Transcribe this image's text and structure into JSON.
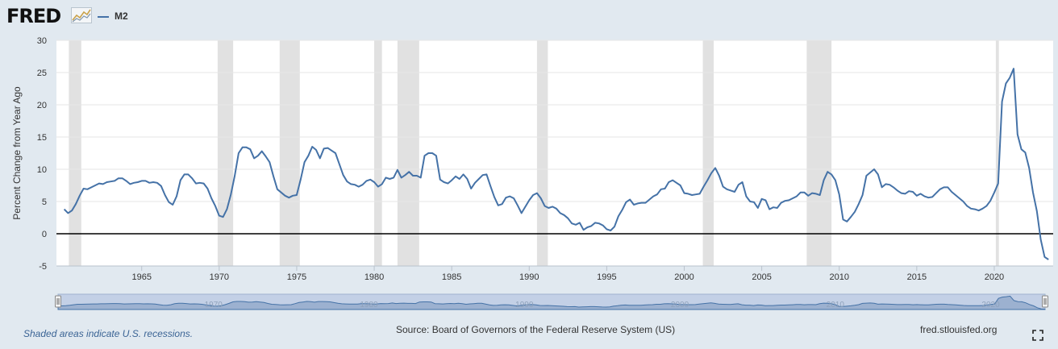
{
  "header": {
    "logo_text": "FRED",
    "logo_icon": "fred-line-graph-icon",
    "legend": [
      {
        "label": "M2",
        "color": "#4572a7"
      }
    ]
  },
  "footer": {
    "recession_note": "Shaded areas indicate U.S. recessions.",
    "source": "Source: Board of Governors of the Federal Reserve System (US)",
    "site": "fred.stlouisfed.org",
    "expand_icon": "fullscreen-expand-icon"
  },
  "navigator": {
    "tick_labels": [
      "1970",
      "1980",
      "1990",
      "2000",
      "2010",
      "2020"
    ],
    "range_start": 1960,
    "range_end": 2023.5
  },
  "chart_data": {
    "type": "line",
    "title": "",
    "ylabel": "Percent Change from Year Ago",
    "xlabel": "",
    "xlim": [
      1959.5,
      2023.8
    ],
    "ylim": [
      -5,
      30
    ],
    "yticks": [
      -5,
      0,
      5,
      10,
      15,
      20,
      25,
      30
    ],
    "xticks": [
      1965,
      1970,
      1975,
      1980,
      1985,
      1990,
      1995,
      2000,
      2005,
      2010,
      2015,
      2020
    ],
    "grid": true,
    "legend_position": "top-left",
    "series_color": "#4572a7",
    "recessions": [
      [
        1960.3,
        1961.1
      ],
      [
        1969.9,
        1970.9
      ],
      [
        1973.9,
        1975.2
      ],
      [
        1980.0,
        1980.5
      ],
      [
        1981.5,
        1982.9
      ],
      [
        1990.5,
        1991.2
      ],
      [
        2001.2,
        2001.9
      ],
      [
        2007.9,
        2009.5
      ],
      [
        2020.1,
        2020.3
      ]
    ],
    "series": [
      {
        "name": "M2",
        "x": [
          1960.0,
          1960.25,
          1960.5,
          1960.75,
          1961.0,
          1961.25,
          1961.5,
          1961.75,
          1962.0,
          1962.25,
          1962.5,
          1962.75,
          1963.0,
          1963.25,
          1963.5,
          1963.75,
          1964.0,
          1964.25,
          1964.5,
          1964.75,
          1965.0,
          1965.25,
          1965.5,
          1965.75,
          1966.0,
          1966.25,
          1966.5,
          1966.75,
          1967.0,
          1967.25,
          1967.5,
          1967.75,
          1968.0,
          1968.25,
          1968.5,
          1968.75,
          1969.0,
          1969.25,
          1969.5,
          1969.75,
          1970.0,
          1970.25,
          1970.5,
          1970.75,
          1971.0,
          1971.25,
          1971.5,
          1971.75,
          1972.0,
          1972.25,
          1972.5,
          1972.75,
          1973.0,
          1973.25,
          1973.5,
          1973.75,
          1974.0,
          1974.25,
          1974.5,
          1974.75,
          1975.0,
          1975.25,
          1975.5,
          1975.75,
          1976.0,
          1976.25,
          1976.5,
          1976.75,
          1977.0,
          1977.25,
          1977.5,
          1977.75,
          1978.0,
          1978.25,
          1978.5,
          1978.75,
          1979.0,
          1979.25,
          1979.5,
          1979.75,
          1980.0,
          1980.25,
          1980.5,
          1980.75,
          1981.0,
          1981.25,
          1981.5,
          1981.75,
          1982.0,
          1982.25,
          1982.5,
          1982.75,
          1983.0,
          1983.25,
          1983.5,
          1983.75,
          1984.0,
          1984.25,
          1984.5,
          1984.75,
          1985.0,
          1985.25,
          1985.5,
          1985.75,
          1986.0,
          1986.25,
          1986.5,
          1986.75,
          1987.0,
          1987.25,
          1987.5,
          1987.75,
          1988.0,
          1988.25,
          1988.5,
          1988.75,
          1989.0,
          1989.25,
          1989.5,
          1989.75,
          1990.0,
          1990.25,
          1990.5,
          1990.75,
          1991.0,
          1991.25,
          1991.5,
          1991.75,
          1992.0,
          1992.25,
          1992.5,
          1992.75,
          1993.0,
          1993.25,
          1993.5,
          1993.75,
          1994.0,
          1994.25,
          1994.5,
          1994.75,
          1995.0,
          1995.25,
          1995.5,
          1995.75,
          1996.0,
          1996.25,
          1996.5,
          1996.75,
          1997.0,
          1997.25,
          1997.5,
          1997.75,
          1998.0,
          1998.25,
          1998.5,
          1998.75,
          1999.0,
          1999.25,
          1999.5,
          1999.75,
          2000.0,
          2000.25,
          2000.5,
          2000.75,
          2001.0,
          2001.25,
          2001.5,
          2001.75,
          2002.0,
          2002.25,
          2002.5,
          2002.75,
          2003.0,
          2003.25,
          2003.5,
          2003.75,
          2004.0,
          2004.25,
          2004.5,
          2004.75,
          2005.0,
          2005.25,
          2005.5,
          2005.75,
          2006.0,
          2006.25,
          2006.5,
          2006.75,
          2007.0,
          2007.25,
          2007.5,
          2007.75,
          2008.0,
          2008.25,
          2008.5,
          2008.75,
          2009.0,
          2009.25,
          2009.5,
          2009.75,
          2010.0,
          2010.25,
          2010.5,
          2010.75,
          2011.0,
          2011.25,
          2011.5,
          2011.75,
          2012.0,
          2012.25,
          2012.5,
          2012.75,
          2013.0,
          2013.25,
          2013.5,
          2013.75,
          2014.0,
          2014.25,
          2014.5,
          2014.75,
          2015.0,
          2015.25,
          2015.5,
          2015.75,
          2016.0,
          2016.25,
          2016.5,
          2016.75,
          2017.0,
          2017.25,
          2017.5,
          2017.75,
          2018.0,
          2018.25,
          2018.5,
          2018.75,
          2019.0,
          2019.25,
          2019.5,
          2019.75,
          2020.0,
          2020.25,
          2020.5,
          2020.75,
          2021.0,
          2021.25,
          2021.5,
          2021.75,
          2022.0,
          2022.25,
          2022.5,
          2022.75,
          2023.0,
          2023.25,
          2023.5
        ],
        "y": [
          3.8,
          3.2,
          3.6,
          4.6,
          5.9,
          7.0,
          6.9,
          7.2,
          7.5,
          7.8,
          7.7,
          8.0,
          8.1,
          8.2,
          8.6,
          8.6,
          8.2,
          7.7,
          7.9,
          8.0,
          8.2,
          8.2,
          7.9,
          8.0,
          7.9,
          7.4,
          6.0,
          4.9,
          4.5,
          5.8,
          8.3,
          9.2,
          9.2,
          8.6,
          7.8,
          7.9,
          7.8,
          7.0,
          5.5,
          4.3,
          2.8,
          2.6,
          3.8,
          6.1,
          9.0,
          12.5,
          13.4,
          13.4,
          13.1,
          11.7,
          12.1,
          12.8,
          12.0,
          11.1,
          8.9,
          6.9,
          6.4,
          5.9,
          5.6,
          5.9,
          6.0,
          8.4,
          11.1,
          12.1,
          13.5,
          13.0,
          11.7,
          13.2,
          13.3,
          12.9,
          12.5,
          10.8,
          9.1,
          8.1,
          7.7,
          7.6,
          7.3,
          7.6,
          8.2,
          8.4,
          8.0,
          7.3,
          7.7,
          8.7,
          8.5,
          8.7,
          9.9,
          8.7,
          9.1,
          9.6,
          9.0,
          9.0,
          8.7,
          12.1,
          12.5,
          12.5,
          12.1,
          8.4,
          8.0,
          7.8,
          8.3,
          8.9,
          8.5,
          9.2,
          8.5,
          7.0,
          7.9,
          8.5,
          9.1,
          9.2,
          7.4,
          5.7,
          4.4,
          4.6,
          5.6,
          5.8,
          5.5,
          4.4,
          3.2,
          4.2,
          5.2,
          6.0,
          6.3,
          5.5,
          4.3,
          4.0,
          4.2,
          3.9,
          3.2,
          2.9,
          2.4,
          1.6,
          1.4,
          1.7,
          0.6,
          1.0,
          1.2,
          1.7,
          1.6,
          1.3,
          0.7,
          0.5,
          1.1,
          2.7,
          3.7,
          4.9,
          5.3,
          4.5,
          4.7,
          4.8,
          4.8,
          5.3,
          5.8,
          6.1,
          6.9,
          7.0,
          8.0,
          8.3,
          7.9,
          7.5,
          6.3,
          6.2,
          6.0,
          6.1,
          6.2,
          7.3,
          8.3,
          9.4,
          10.2,
          9.0,
          7.3,
          6.9,
          6.7,
          6.5,
          7.6,
          8.0,
          5.8,
          5.0,
          4.9,
          4.0,
          5.4,
          5.2,
          3.8,
          4.1,
          4.0,
          4.8,
          5.1,
          5.2,
          5.5,
          5.8,
          6.4,
          6.4,
          5.9,
          6.3,
          6.2,
          6.0,
          8.3,
          9.6,
          9.2,
          8.3,
          6.1,
          2.2,
          1.9,
          2.6,
          3.4,
          4.6,
          6.0,
          9.0,
          9.5,
          10.0,
          9.2,
          7.2,
          7.7,
          7.6,
          7.2,
          6.7,
          6.3,
          6.2,
          6.6,
          6.5,
          5.9,
          6.2,
          5.8,
          5.6,
          5.7,
          6.3,
          6.9,
          7.2,
          7.2,
          6.5,
          6.0,
          5.5,
          5.0,
          4.3,
          3.9,
          3.8,
          3.6,
          3.9,
          4.3,
          5.1,
          6.4,
          7.8,
          20.5,
          23.3,
          24.2,
          25.6,
          15.4,
          13.1,
          12.6,
          10.2,
          6.4,
          3.5,
          -0.9,
          -3.6,
          -4.0
        ]
      }
    ]
  }
}
